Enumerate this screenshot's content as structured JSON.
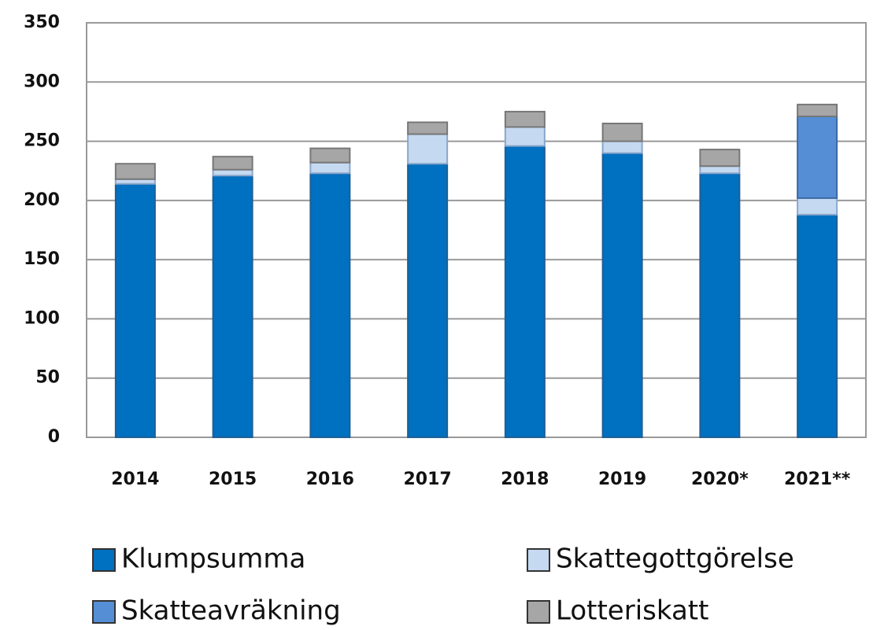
{
  "chart_data": {
    "type": "stacked_bar",
    "categories": [
      "2014",
      "2015",
      "2016",
      "2017",
      "2018",
      "2019",
      "2020*",
      "2021**"
    ],
    "series": [
      {
        "name": "Klumpsumma",
        "color": "#0070c0",
        "values": [
          214,
          221,
          223,
          231,
          246,
          240,
          223,
          188
        ]
      },
      {
        "name": "Skattegottgörelse",
        "color": "#c5d9f1",
        "values": [
          4,
          5,
          9,
          25,
          16,
          10,
          6,
          14
        ]
      },
      {
        "name": "Skatteavräkning",
        "color": "#558ed5",
        "values": [
          0,
          0,
          0,
          0,
          0,
          0,
          0,
          69
        ]
      },
      {
        "name": "Lotteriskatt",
        "color": "#a6a6a6",
        "values": [
          13,
          11,
          12,
          10,
          13,
          15,
          14,
          10
        ]
      }
    ],
    "ylim": [
      0,
      350
    ],
    "yticks": [
      0,
      50,
      100,
      150,
      200,
      250,
      300,
      350
    ],
    "grid": true
  }
}
